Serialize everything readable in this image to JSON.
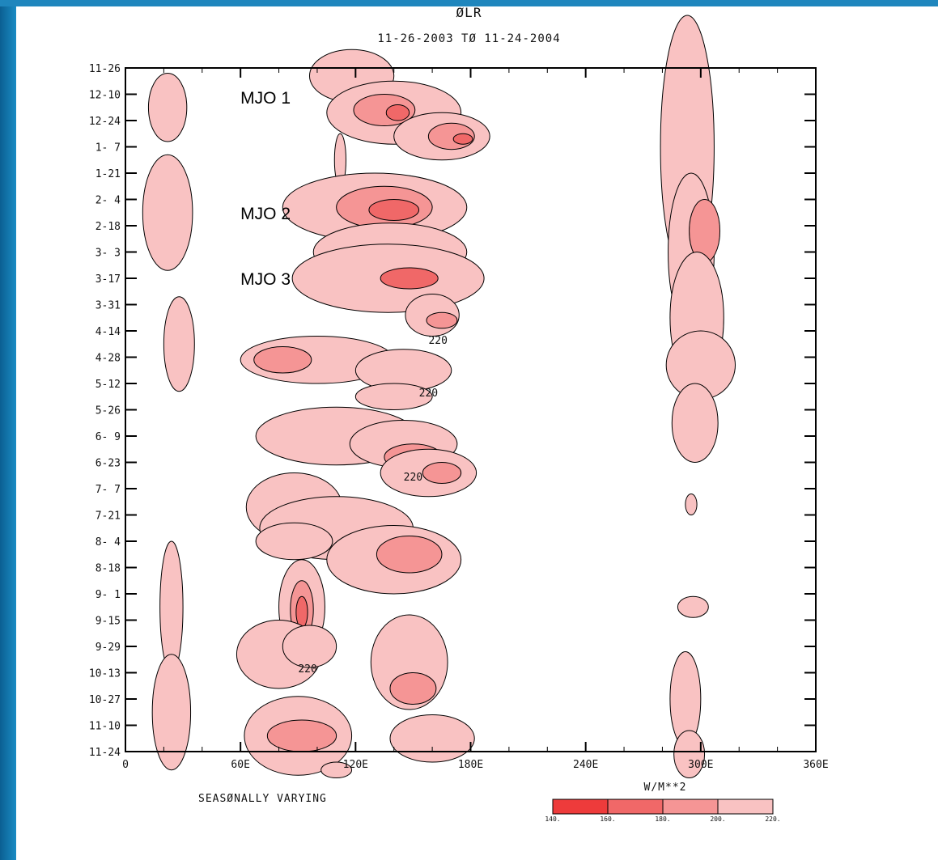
{
  "chart_data": {
    "type": "heatmap",
    "title": "ØLR",
    "subtitle": "11-26-2003 TØ 11-24-2004",
    "x_tick_labels": [
      "0",
      "60E",
      "120E",
      "180E",
      "240E",
      "300E",
      "360E"
    ],
    "x_range": [
      0,
      360
    ],
    "y_tick_labels": [
      "11-26",
      "12-10",
      "12-24",
      "1- 7",
      "1-21",
      "2- 4",
      "2-18",
      "3- 3",
      "3-17",
      "3-31",
      "4-14",
      "4-28",
      "5-12",
      "5-26",
      "6- 9",
      "6-23",
      "7- 7",
      "7-21",
      "8- 4",
      "8-18",
      "9- 1",
      "9-15",
      "9-29",
      "10-13",
      "10-27",
      "11-10",
      "11-24"
    ],
    "annotations": [
      "MJO 1",
      "MJO 2",
      "MJO 3"
    ],
    "contour_labels": [
      "220",
      "220",
      "220",
      "220"
    ],
    "footer_note": "SEASØNALLY VARYING",
    "colorbar": {
      "title": "W/M**2",
      "levels": [
        "140.",
        "160.",
        "180.",
        "200.",
        "220."
      ],
      "colors": [
        "#ee3b3b",
        "#f06868",
        "#f59595",
        "#f9c2c2"
      ]
    }
  }
}
